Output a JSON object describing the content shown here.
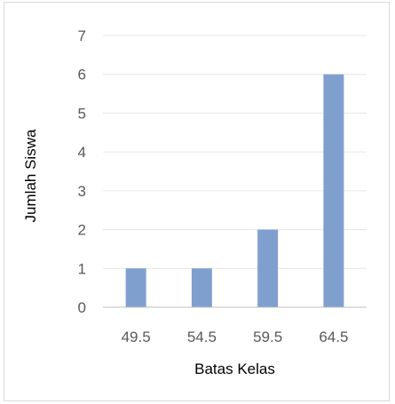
{
  "chart_data": {
    "type": "bar",
    "categories": [
      "49.5",
      "54.5",
      "59.5",
      "64.5"
    ],
    "values": [
      1,
      1,
      2,
      6
    ],
    "title": "",
    "xlabel": "Batas Kelas",
    "ylabel": "Jumlah Siswa",
    "ylim": [
      0,
      7
    ],
    "yticks": [
      "0",
      "1",
      "2",
      "3",
      "4",
      "5",
      "6",
      "7"
    ],
    "grid": true,
    "legend": "none",
    "bar_color": "#7f9fcf",
    "grid_color": "#e6e6e6",
    "axis_color": "#bfbfbf"
  }
}
